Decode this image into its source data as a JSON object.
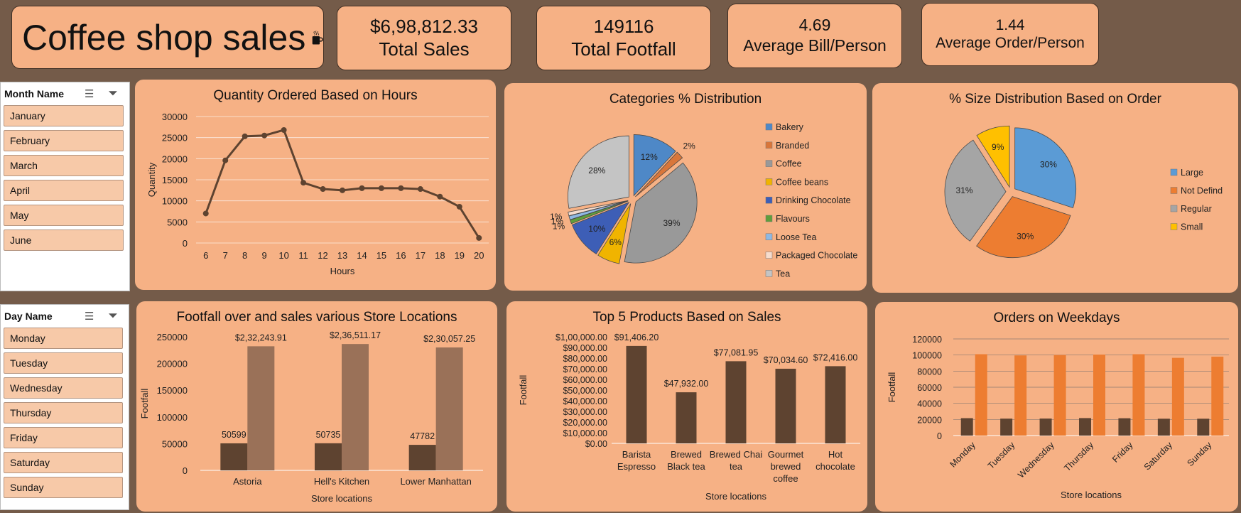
{
  "kpis": {
    "title": "Coffee shop sales",
    "total_sales_value": "$6,98,812.33",
    "total_sales_label": "Total Sales",
    "total_footfall_value": "149116",
    "total_footfall_label": "Total Footfall",
    "avg_bill_value": "4.69",
    "avg_bill_label": "Average Bill/Person",
    "avg_order_value": "1.44",
    "avg_order_label": "Average Order/Person"
  },
  "slicers": {
    "month": {
      "header": "Month Name",
      "items": [
        "January",
        "February",
        "March",
        "April",
        "May",
        "June"
      ]
    },
    "day": {
      "header": "Day Name",
      "items": [
        "Monday",
        "Tuesday",
        "Wednesday",
        "Thursday",
        "Friday",
        "Saturday",
        "Sunday"
      ]
    }
  },
  "colors": {
    "background": "#745b49",
    "panel": "#f6b185",
    "dark_brown": "#5e4330",
    "light_brown": "#9a7158",
    "orange": "#ed7d31"
  },
  "chart_data": [
    {
      "id": "hours",
      "type": "line",
      "title": "Quantity Ordered Based on Hours",
      "xlabel": "Hours",
      "ylabel": "Quantity",
      "x": [
        6,
        7,
        8,
        9,
        10,
        11,
        12,
        13,
        14,
        15,
        16,
        17,
        18,
        19,
        20
      ],
      "values": [
        7000,
        19600,
        25300,
        25500,
        26800,
        14300,
        12800,
        12500,
        13000,
        13000,
        13000,
        12800,
        11000,
        8600,
        1200
      ],
      "ylim": [
        0,
        30000
      ],
      "yticks": [
        0,
        5000,
        10000,
        15000,
        20000,
        25000,
        30000
      ],
      "color": "#5e4330",
      "grid": true
    },
    {
      "id": "categories",
      "type": "pie",
      "title": "Categories % Distribution",
      "legend_position": "right",
      "slices": [
        {
          "label": "Bakery",
          "value": 12,
          "text": "12%",
          "color": "#4e88c7"
        },
        {
          "label": "Branded",
          "value": 2,
          "text": "2%",
          "color": "#d9763a"
        },
        {
          "label": "Coffee",
          "value": 39,
          "text": "39%",
          "color": "#999999"
        },
        {
          "label": "Coffee beans",
          "value": 6,
          "text": "6%",
          "color": "#f0b400"
        },
        {
          "label": "Drinking Chocolate",
          "value": 10,
          "text": "10%",
          "color": "#3d5eb6"
        },
        {
          "label": "Flavours",
          "value": 1,
          "text": "1%",
          "color": "#5f9e3c"
        },
        {
          "label": "Loose Tea",
          "value": 1,
          "text": "1%",
          "color": "#8fb8e2"
        },
        {
          "label": "Packaged Chocolate",
          "value": 1,
          "text": "1%",
          "color": "#f6dccd"
        },
        {
          "label": "Tea",
          "value": 28,
          "text": "28%",
          "color": "#c4c4c4"
        }
      ]
    },
    {
      "id": "size",
      "type": "pie",
      "title": "% Size Distribution Based on Order",
      "legend_position": "right",
      "slices": [
        {
          "label": "Large",
          "value": 30,
          "text": "30%",
          "color": "#5b9bd5"
        },
        {
          "label": "Not Defind",
          "value": 30,
          "text": "30%",
          "color": "#ed7d31"
        },
        {
          "label": "Regular",
          "value": 31,
          "text": "31%",
          "color": "#a5a5a5"
        },
        {
          "label": "Small",
          "value": 9,
          "text": "9%",
          "color": "#ffc000"
        }
      ]
    },
    {
      "id": "stores",
      "type": "bar",
      "title": "Footfall over and sales various Store Locations",
      "xlabel": "Store locations",
      "ylabel": "Footfall",
      "categories": [
        "Astoria",
        "Hell's Kitchen",
        "Lower Manhattan"
      ],
      "series": [
        {
          "values": [
            50599,
            50735,
            47782
          ],
          "labels": [
            "50599",
            "50735",
            "47782"
          ],
          "color": "#5e4330"
        },
        {
          "values": [
            232243.91,
            236511.17,
            230057.25
          ],
          "labels": [
            "$2,32,243.91",
            "$2,36,511.17",
            "$2,30,057.25"
          ],
          "color": "#9a7158"
        }
      ],
      "ylim": [
        0,
        250000
      ],
      "yticks": [
        0,
        50000,
        100000,
        150000,
        200000,
        250000
      ],
      "grid": false
    },
    {
      "id": "products",
      "type": "bar",
      "title": "Top 5 Products Based on Sales",
      "xlabel": "Store locations",
      "ylabel": "Footfall",
      "categories": [
        [
          "Barista",
          "Espresso"
        ],
        [
          "Brewed",
          "Black tea"
        ],
        [
          "Brewed Chai",
          "tea"
        ],
        [
          "Gourmet",
          "brewed",
          "coffee"
        ],
        [
          "Hot",
          "chocolate"
        ]
      ],
      "series": [
        {
          "values": [
            91406.2,
            47932.0,
            77081.95,
            70034.6,
            72416.0
          ],
          "labels": [
            "$91,406.20",
            "$47,932.00",
            "$77,081.95",
            "$70,034.60",
            "$72,416.00"
          ],
          "color": "#5e4330"
        }
      ],
      "ylim": [
        0,
        100000
      ],
      "yticks": [
        0,
        10000,
        20000,
        30000,
        40000,
        50000,
        60000,
        70000,
        80000,
        90000,
        100000
      ],
      "yticklabels": [
        "$0.00",
        "$10,000.00",
        "$20,000.00",
        "$30,000.00",
        "$40,000.00",
        "$50,000.00",
        "$60,000.00",
        "$70,000.00",
        "$80,000.00",
        "$90,000.00",
        "$1,00,000.00"
      ],
      "grid": false
    },
    {
      "id": "weekdays",
      "type": "bar",
      "title": "Orders on Weekdays",
      "xlabel": "Store locations",
      "ylabel": "Footfall",
      "categories": [
        "Monday",
        "Tuesday",
        "Wednesday",
        "Thursday",
        "Friday",
        "Saturday",
        "Sunday"
      ],
      "series": [
        {
          "values": [
            21600,
            21000,
            21100,
            21700,
            21500,
            20900,
            20900
          ],
          "color": "#5e4330"
        },
        {
          "values": [
            101000,
            99500,
            100000,
            100500,
            101000,
            96500,
            98000
          ],
          "color": "#ed7d31"
        }
      ],
      "ylim": [
        0,
        120000
      ],
      "yticks": [
        0,
        20000,
        40000,
        60000,
        80000,
        100000,
        120000
      ],
      "grid": true
    }
  ]
}
